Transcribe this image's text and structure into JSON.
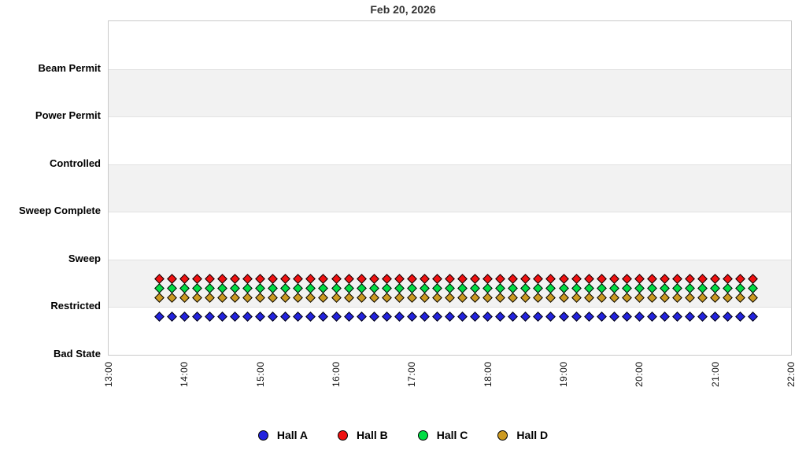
{
  "title": "Feb 20, 2026",
  "chart_data": {
    "type": "scatter",
    "title": "Feb 20, 2026",
    "x_axis": {
      "label": "",
      "ticks": [
        "13:00",
        "14:00",
        "15:00",
        "16:00",
        "17:00",
        "18:00",
        "19:00",
        "20:00",
        "21:00",
        "22:00"
      ],
      "range": [
        "13:00",
        "22:00"
      ]
    },
    "y_axis": {
      "label": "",
      "categories_bottom_to_top": [
        "Bad State",
        "Restricted",
        "Sweep",
        "Sweep Complete",
        "Controlled",
        "Power Permit",
        "Beam Permit"
      ],
      "value_range_units": [
        0,
        7
      ]
    },
    "grid": "alternating light-gray horizontal bands between Restricted-Sweep, Sweep Complete-Controlled, Power Permit-Beam Permit",
    "legend_position": "bottom center",
    "marker_shape": "diamond",
    "samples": {
      "start": "13:40",
      "end": "21:30",
      "interval_minutes": 10,
      "count": 48,
      "times": [
        "13:40",
        "13:50",
        "14:00",
        "14:10",
        "14:20",
        "14:30",
        "14:40",
        "14:50",
        "15:00",
        "15:10",
        "15:20",
        "15:30",
        "15:40",
        "15:50",
        "16:00",
        "16:10",
        "16:20",
        "16:30",
        "16:40",
        "16:50",
        "17:00",
        "17:10",
        "17:20",
        "17:30",
        "17:40",
        "17:50",
        "18:00",
        "18:10",
        "18:20",
        "18:30",
        "18:40",
        "18:50",
        "19:00",
        "19:10",
        "19:20",
        "19:30",
        "19:40",
        "19:50",
        "20:00",
        "20:10",
        "20:20",
        "20:30",
        "20:40",
        "20:50",
        "21:00",
        "21:10",
        "21:20",
        "21:30"
      ]
    },
    "series": [
      {
        "name": "Hall B",
        "color": "#ee1111",
        "state_all_samples": "Restricted",
        "state_value": 1,
        "plot_offset": 0.6,
        "plotted_value": 1.6
      },
      {
        "name": "Hall C",
        "color": "#00dd44",
        "state_all_samples": "Restricted",
        "state_value": 1,
        "plot_offset": 0.4,
        "plotted_value": 1.4
      },
      {
        "name": "Hall D",
        "color": "#cc9a22",
        "state_all_samples": "Restricted",
        "state_value": 1,
        "plot_offset": 0.2,
        "plotted_value": 1.2
      },
      {
        "name": "Hall A",
        "color": "#2222dd",
        "state_all_samples": "Restricted",
        "state_value": 1,
        "plot_offset": -0.2,
        "plotted_value": 0.8
      }
    ]
  },
  "legend": {
    "items": [
      {
        "label": "Hall A",
        "color": "#2222dd"
      },
      {
        "label": "Hall B",
        "color": "#ee1111"
      },
      {
        "label": "Hall C",
        "color": "#00dd44"
      },
      {
        "label": "Hall D",
        "color": "#cc9a22"
      }
    ]
  },
  "colors": {
    "band": "#f2f2f2",
    "gridline": "#e2e2e2",
    "plot_border": "#c9c9c9",
    "title_text": "#333333"
  }
}
